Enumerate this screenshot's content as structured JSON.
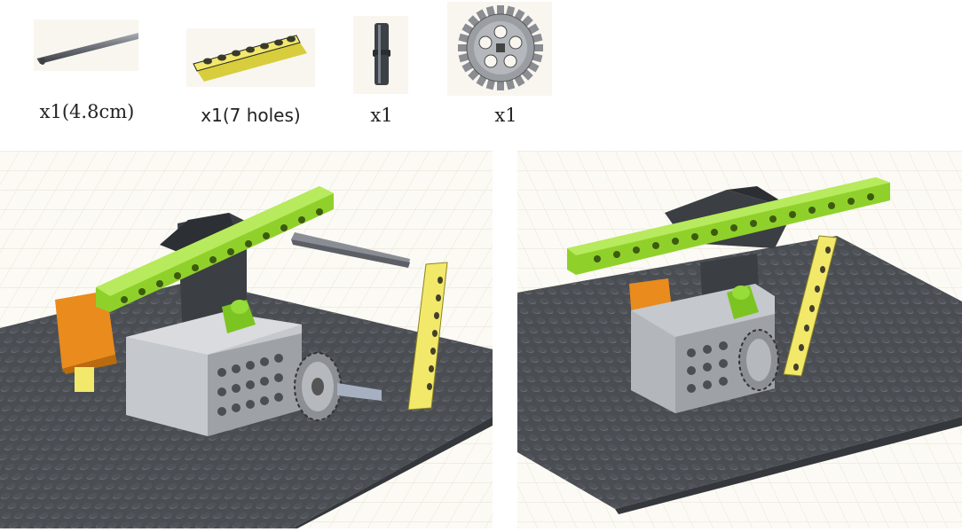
{
  "parts": [
    {
      "name": "axle",
      "caption": "x1(4.8cm)"
    },
    {
      "name": "beam-7-holes",
      "caption": "x1(7 holes)"
    },
    {
      "name": "connector-pin",
      "caption": "x1"
    },
    {
      "name": "gear",
      "caption": "x1"
    }
  ],
  "colors": {
    "baseplate": "#55595e",
    "green": "#8fd12a",
    "yellow": "#f2e86a",
    "grey": "#aeb2b8",
    "dark": "#34373b",
    "orange": "#e98b1d",
    "axle": "#6d7077"
  },
  "views": [
    {
      "name": "assembly-view-front"
    },
    {
      "name": "assembly-view-side"
    }
  ]
}
